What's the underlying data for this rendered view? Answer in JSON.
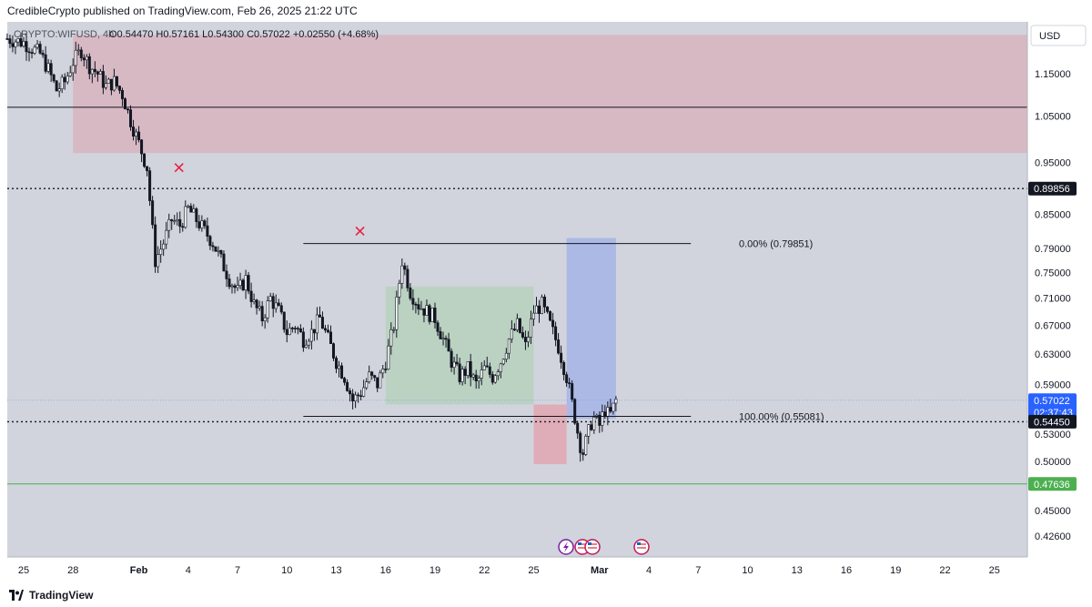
{
  "header": {
    "published": "CredibleCrypto published on TradingView.com, Feb 26, 2025 21:22 UTC"
  },
  "footer": {
    "brand": "TradingView"
  },
  "legend": {
    "symbol": "CRYPTO:WIFUSD, 4h",
    "ohlc": "O0.54470  H0.57161  L0.54300  C0.57022  +0.02550 (+4.68%)"
  },
  "currency_button": "USD",
  "colors": {
    "chart_bg": "#d1d4dc",
    "up_candle": "#ffffff",
    "down_candle": "#131722",
    "supply_zone": "#d8b4c0",
    "green_box": "#b8d2bf",
    "red_box": "#e0a9b3",
    "blue_box": "#a9b6e6",
    "support_line": "#4caf50",
    "last_price_label": "#2962ff",
    "cross_marker": "#e91e45"
  },
  "chart_data": {
    "type": "candlestick",
    "symbol": "CRYPTO:WIFUSD",
    "timeframe": "4h",
    "x_ticks": [
      "25",
      "28",
      "Feb",
      "4",
      "7",
      "10",
      "13",
      "16",
      "19",
      "22",
      "25",
      "Mar",
      "4",
      "7",
      "10",
      "13",
      "16",
      "19",
      "22",
      "25"
    ],
    "y_ticks": [
      "1.15000",
      "1.05000",
      "0.95000",
      "0.85000",
      "0.79000",
      "0.75000",
      "0.71000",
      "0.67000",
      "0.63000",
      "0.59000",
      "0.53000",
      "0.50000",
      "0.45000",
      "0.42600"
    ],
    "ylim": [
      0.4,
      1.25
    ],
    "y_scale": "log",
    "price_labels": [
      {
        "value": "0.89856",
        "style": "dark"
      },
      {
        "value": "0.57022",
        "sub": "02:37:43",
        "style": "current"
      },
      {
        "value": "0.54450",
        "style": "dark"
      },
      {
        "value": "0.47636",
        "style": "green"
      }
    ],
    "horizontal_lines": [
      {
        "y": 1.07,
        "style": "solid",
        "color": "#131722"
      },
      {
        "y": 0.89856,
        "style": "dotted",
        "color": "#131722"
      },
      {
        "y": 0.5445,
        "style": "dotted",
        "color": "#131722"
      },
      {
        "y": 0.47636,
        "style": "solid",
        "color": "#4caf50"
      }
    ],
    "fib": [
      {
        "label": "0.00% (0.79851)",
        "y": 0.79851
      },
      {
        "label": "100.00% (0.55081)",
        "y": 0.55081
      }
    ],
    "zones": [
      {
        "name": "supply",
        "y_from": 0.97,
        "y_to": 1.25,
        "x_from": "Jan 28",
        "x_to": "right-edge"
      },
      {
        "name": "range",
        "y_from": 0.565,
        "y_to": 0.728,
        "x_from": "Feb 16",
        "x_to": "Feb 25"
      },
      {
        "name": "stop",
        "y_from": 0.497,
        "y_to": 0.565,
        "x_from": "Feb 25",
        "x_to": "Feb 27"
      },
      {
        "name": "target",
        "y_from": 0.548,
        "y_to": 0.808,
        "x_from": "Feb 27",
        "x_to": "Mar 2"
      }
    ],
    "markers": [
      {
        "type": "cross",
        "x": "Feb 3",
        "y": 0.94
      },
      {
        "type": "cross",
        "x": "Feb 14",
        "y": 0.82
      }
    ],
    "close_path": [
      [
        -1,
        1.24
      ],
      [
        0,
        1.23
      ],
      [
        1,
        1.2
      ],
      [
        1.5,
        1.16
      ],
      [
        2,
        1.11
      ],
      [
        2.5,
        1.13
      ],
      [
        3,
        1.18
      ],
      [
        3.5,
        1.21
      ],
      [
        4,
        1.17
      ],
      [
        4.5,
        1.15
      ],
      [
        5,
        1.12
      ],
      [
        5.5,
        1.13
      ],
      [
        6,
        1.1
      ],
      [
        6.5,
        1.04
      ],
      [
        7,
        0.99
      ],
      [
        7.5,
        0.94
      ],
      [
        7.8,
        0.83
      ],
      [
        8,
        0.77
      ],
      [
        8.5,
        0.8
      ],
      [
        9,
        0.84
      ],
      [
        9.5,
        0.83
      ],
      [
        10,
        0.86
      ],
      [
        10.5,
        0.84
      ],
      [
        11,
        0.82
      ],
      [
        11.5,
        0.8
      ],
      [
        12,
        0.77
      ],
      [
        12.5,
        0.74
      ],
      [
        13,
        0.72
      ],
      [
        13.5,
        0.74
      ],
      [
        14,
        0.7
      ],
      [
        14.5,
        0.68
      ],
      [
        15,
        0.71
      ],
      [
        15.5,
        0.69
      ],
      [
        16,
        0.66
      ],
      [
        16.5,
        0.67
      ],
      [
        17,
        0.65
      ],
      [
        17.5,
        0.66
      ],
      [
        18,
        0.68
      ],
      [
        18.5,
        0.65
      ],
      [
        19,
        0.62
      ],
      [
        19.5,
        0.6
      ],
      [
        20,
        0.57
      ],
      [
        20.5,
        0.58
      ],
      [
        21,
        0.6
      ],
      [
        21.5,
        0.59
      ],
      [
        22,
        0.62
      ],
      [
        22.5,
        0.67
      ],
      [
        23,
        0.77
      ],
      [
        23.5,
        0.72
      ],
      [
        24,
        0.7
      ],
      [
        24.5,
        0.69
      ],
      [
        25,
        0.68
      ],
      [
        25.5,
        0.65
      ],
      [
        26,
        0.62
      ],
      [
        26.5,
        0.6
      ],
      [
        27,
        0.61
      ],
      [
        27.5,
        0.59
      ],
      [
        28,
        0.61
      ],
      [
        28.5,
        0.6
      ],
      [
        29,
        0.62
      ],
      [
        29.5,
        0.65
      ],
      [
        30,
        0.67
      ],
      [
        30.5,
        0.64
      ],
      [
        31,
        0.69
      ],
      [
        31.5,
        0.7
      ],
      [
        32,
        0.67
      ],
      [
        32.5,
        0.64
      ],
      [
        33,
        0.6
      ],
      [
        33.5,
        0.55
      ],
      [
        33.8,
        0.52
      ],
      [
        34,
        0.51
      ],
      [
        34.3,
        0.53
      ],
      [
        34.6,
        0.55
      ],
      [
        35,
        0.54
      ],
      [
        35.3,
        0.56
      ],
      [
        35.6,
        0.55
      ],
      [
        36,
        0.57
      ]
    ]
  }
}
